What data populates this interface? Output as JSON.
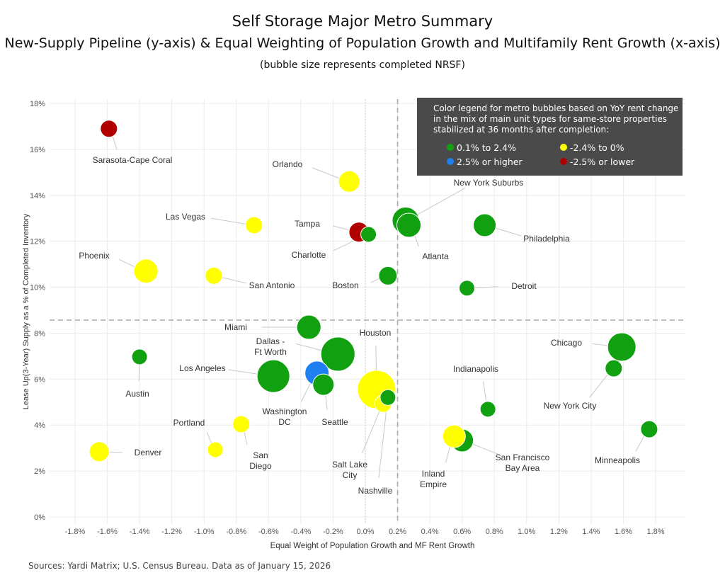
{
  "chart_data": {
    "type": "scatter",
    "title": "Self Storage Major Metro Summary",
    "subtitle": "New-Supply Pipeline (y-axis) & Equal Weighting of Population Growth and Multifamily Rent Growth (x-axis)",
    "note": "(bubble size represents completed NRSF)",
    "xlabel": "Equal Weight of Population Growth and MF Rent Growth",
    "ylabel": "Lease Up(3-Year) Supply as a % of Completed Inventory",
    "xlim": [
      -1.9,
      2.0
    ],
    "ylim": [
      -0.2,
      18.3
    ],
    "xticks": [
      -1.8,
      -1.6,
      -1.4,
      -1.2,
      -1.0,
      -0.8,
      -0.6,
      -0.4,
      -0.2,
      0.0,
      0.2,
      0.4,
      0.6,
      0.8,
      1.0,
      1.2,
      1.4,
      1.6,
      1.8
    ],
    "xtick_labels": [
      "-1.8%",
      "-1.6%",
      "-1.4%",
      "-1.2%",
      "-1.0%",
      "-0.8%",
      "-0.6%",
      "-0.4%",
      "-0.2%",
      "0.0%",
      "0.2%",
      "0.4%",
      "0.6%",
      "0.8%",
      "1.0%",
      "1.2%",
      "1.4%",
      "1.6%",
      "1.8%"
    ],
    "yticks": [
      0,
      2,
      4,
      6,
      8,
      10,
      12,
      14,
      16,
      18
    ],
    "ytick_labels": [
      "0%",
      "2%",
      "4%",
      "6%",
      "8%",
      "10%",
      "12%",
      "14%",
      "16%",
      "18%"
    ],
    "grid": true,
    "reference_lines": {
      "x": 0.2,
      "y": 8.57
    },
    "legend": {
      "title_lines": [
        "Color legend for metro bubbles based on YoY rent change",
        "in the mix of main unit types for same-store properties",
        "stabilized at 36 months after completion:"
      ],
      "placement": "top-right",
      "entries": [
        {
          "label": "0.1% to 2.4%",
          "color": "#10a010",
          "key": "green"
        },
        {
          "label": "-2.4% to 0%",
          "color": "#ffff00",
          "key": "yellow"
        },
        {
          "label": "2.5% or higher",
          "color": "#1e7ff0",
          "key": "blue"
        },
        {
          "label": "-2.5% or lower",
          "color": "#b00000",
          "key": "red"
        }
      ]
    },
    "points": [
      {
        "name": "Sarasota-Cape Coral",
        "x": -1.59,
        "y": 16.9,
        "size": 12,
        "color": "red"
      },
      {
        "name": "Orlando",
        "x": -0.1,
        "y": 14.6,
        "size": 15,
        "color": "yellow"
      },
      {
        "name": "Las Vegas",
        "x": -0.69,
        "y": 12.7,
        "size": 12,
        "color": "yellow"
      },
      {
        "name": "Tampa",
        "x": -0.04,
        "y": 12.4,
        "size": 14,
        "color": "red"
      },
      {
        "name": "Charlotte",
        "x": 0.02,
        "y": 12.3,
        "size": 11,
        "color": "green"
      },
      {
        "name": "New York Suburbs",
        "x": 0.25,
        "y": 12.9,
        "size": 19,
        "color": "green"
      },
      {
        "name": "Atlanta",
        "x": 0.27,
        "y": 12.7,
        "size": 17,
        "color": "green"
      },
      {
        "name": "Philadelphia",
        "x": 0.74,
        "y": 12.7,
        "size": 16,
        "color": "green"
      },
      {
        "name": "Phoenix",
        "x": -1.36,
        "y": 10.7,
        "size": 17,
        "color": "yellow"
      },
      {
        "name": "San Antonio",
        "x": -0.94,
        "y": 10.5,
        "size": 12,
        "color": "yellow"
      },
      {
        "name": "Boston",
        "x": 0.14,
        "y": 10.5,
        "size": 13,
        "color": "green"
      },
      {
        "name": "Detroit",
        "x": 0.63,
        "y": 9.96,
        "size": 11,
        "color": "green"
      },
      {
        "name": "Miami",
        "x": -0.35,
        "y": 8.26,
        "size": 17,
        "color": "green"
      },
      {
        "name": "Dallas - Ft Worth",
        "x": -0.17,
        "y": 7.09,
        "size": 24,
        "color": "green"
      },
      {
        "name": "Chicago",
        "x": 1.59,
        "y": 7.4,
        "size": 20,
        "color": "green"
      },
      {
        "name": "New York City",
        "x": 1.54,
        "y": 6.47,
        "size": 12,
        "color": "green"
      },
      {
        "name": "Austin",
        "x": -1.4,
        "y": 6.97,
        "size": 11,
        "color": "green"
      },
      {
        "name": "Los Angeles",
        "x": -0.57,
        "y": 6.13,
        "size": 23,
        "color": "green"
      },
      {
        "name": "Washington DC",
        "x": -0.3,
        "y": 6.26,
        "size": 17,
        "color": "blue"
      },
      {
        "name": "Seattle",
        "x": -0.26,
        "y": 5.76,
        "size": 15,
        "color": "green"
      },
      {
        "name": "Houston",
        "x": 0.07,
        "y": 5.55,
        "size": 27,
        "color": "yellow"
      },
      {
        "name": "Salt Lake City",
        "x": 0.11,
        "y": 4.93,
        "size": 12,
        "color": "yellow"
      },
      {
        "name": "Nashville",
        "x": 0.14,
        "y": 5.2,
        "size": 11,
        "color": "green"
      },
      {
        "name": "Indianapolis",
        "x": 0.76,
        "y": 4.69,
        "size": 11,
        "color": "green"
      },
      {
        "name": "Minneapolis",
        "x": 1.76,
        "y": 3.82,
        "size": 12,
        "color": "green"
      },
      {
        "name": "San Francisco Bay Area",
        "x": 0.6,
        "y": 3.33,
        "size": 16,
        "color": "green"
      },
      {
        "name": "Inland Empire",
        "x": 0.55,
        "y": 3.51,
        "size": 16,
        "color": "yellow"
      },
      {
        "name": "Portland",
        "x": -0.93,
        "y": 2.93,
        "size": 11,
        "color": "yellow"
      },
      {
        "name": "San Diego",
        "x": -0.77,
        "y": 4.04,
        "size": 12,
        "color": "yellow"
      },
      {
        "name": "Denver",
        "x": -1.65,
        "y": 2.84,
        "size": 14,
        "color": "yellow"
      }
    ]
  },
  "source": "Sources: Yardi Matrix; U.S. Census Bureau. Data as of January 15, 2026"
}
